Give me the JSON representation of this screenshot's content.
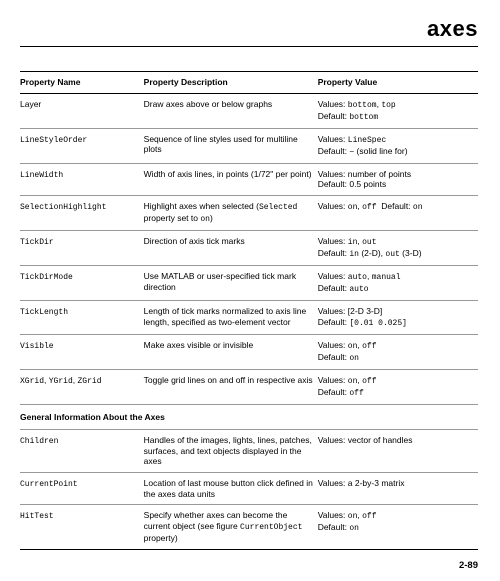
{
  "title": "axes",
  "pageNumber": "2-89",
  "headers": {
    "name": "Property Name",
    "desc": "Property Description",
    "value": "Property Value"
  },
  "rows": [
    {
      "name": "Layer",
      "desc": "Draw axes above or below graphs",
      "value_html": "Values: <span class='mono'>bottom</span>, <span class='mono'>top</span><br>Default: <span class='mono'>bottom</span>"
    },
    {
      "name_html": "<span class='mono'>LineStyleOrder</span>",
      "desc": "Sequence of line styles used for multiline plots",
      "value_html": "Values: <span class='mono'>LineSpec</span><br>Default: <span class='mono'>−</span> (solid line for)"
    },
    {
      "name_html": "<span class='mono'>LineWidth</span>",
      "desc": "Width of axis lines, in points (1/72\" per point)",
      "value_html": "Values: number of points<br>Default: 0.5 points"
    },
    {
      "name_html": "<span class='mono'>SelectionHighlight</span>",
      "desc_html": "Highlight axes when selected (<span class='mono'>Selected</span> property set to <span class='mono'>on</span>)",
      "value_html": "Values: <span class='mono'>on</span>, <span class='mono'>off</span>&nbsp;&nbsp;Default: <span class='mono'>on</span>"
    },
    {
      "name_html": "<span class='mono'>TickDir</span>",
      "desc": "Direction of axis tick marks",
      "value_html": "Values: <span class='mono'>in</span>, <span class='mono'>out</span><br>Default: <span class='mono'>in</span> (2-D), <span class='mono'>out</span> (3-D)"
    },
    {
      "name_html": "<span class='mono'>TickDirMode</span>",
      "desc": "Use MATLAB or user-specified tick mark direction",
      "value_html": "Values: <span class='mono'>auto</span>, <span class='mono'>manual</span><br>Default: <span class='mono'>auto</span>"
    },
    {
      "name_html": "<span class='mono'>TickLength</span>",
      "desc": "Length of tick marks normalized to axis line length, specified as two-element vector",
      "value_html": "Values: [2-D 3-D]<br>Default: <span class='mono'>[0.01 0.025]</span>"
    },
    {
      "name_html": "<span class='mono'>Visible</span>",
      "desc": "Make axes visible or invisible",
      "value_html": "Values: <span class='mono'>on</span>, <span class='mono'>off</span><br>Default: <span class='mono'>on</span>"
    },
    {
      "name_html": "<span class='mono'>XGrid</span>, <span class='mono'>YGrid</span>, <span class='mono'>ZGrid</span>",
      "desc": "Toggle grid lines on and off in respective axis",
      "value_html": "Values: <span class='mono'>on</span>, <span class='mono'>off</span><br>Default: <span class='mono'>off</span>"
    },
    {
      "section": "General Information About the Axes"
    },
    {
      "name_html": "<span class='mono'>Children</span>",
      "desc": "Handles of the images, lights, lines, patches, surfaces, and text objects displayed in the axes",
      "value_html": "Values: vector of handles"
    },
    {
      "name_html": "<span class='mono'>CurrentPoint</span>",
      "desc": "Location of last mouse button click defined in the axes data units",
      "value_html": "Values: a 2-by-3 matrix"
    },
    {
      "name_html": "<span class='mono'>HitTest</span>",
      "desc_html": "Specify whether axes can become the current object (see figure <span class='mono'>CurrentObject</span> property)",
      "value_html": "Values: <span class='mono'>on</span>, <span class='mono'>off</span><br>Default: <span class='mono'>on</span>"
    }
  ]
}
